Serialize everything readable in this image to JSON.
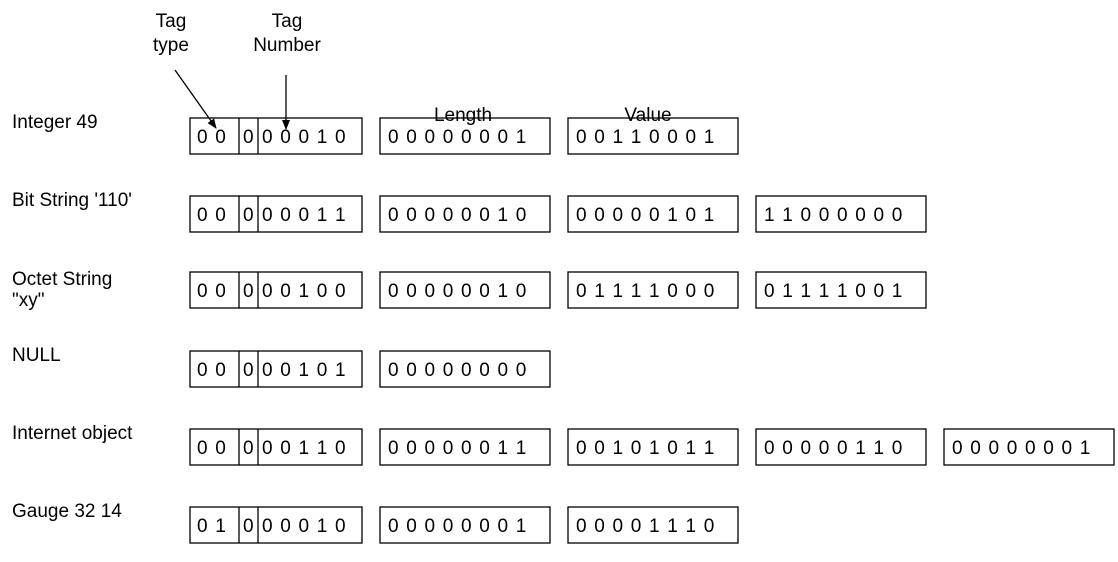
{
  "headers": {
    "tag_type": [
      "Tag",
      "type"
    ],
    "tag_number": [
      "Tag",
      "Number"
    ],
    "length": "Length",
    "value": "Value"
  },
  "rows": [
    {
      "label": [
        "Integer 49"
      ],
      "tag": {
        "class": "00",
        "pc": "0",
        "number": "00010"
      },
      "bytes": [
        "00000001",
        "00110001"
      ]
    },
    {
      "label": [
        "Bit String '110'"
      ],
      "tag": {
        "class": "00",
        "pc": "0",
        "number": "00011"
      },
      "bytes": [
        "00000010",
        "00000101",
        "11000000"
      ]
    },
    {
      "label": [
        "Octet String",
        "\"xy\""
      ],
      "tag": {
        "class": "00",
        "pc": "0",
        "number": "00100"
      },
      "bytes": [
        "00000010",
        "01111000",
        "01111001"
      ]
    },
    {
      "label": [
        "NULL"
      ],
      "tag": {
        "class": "00",
        "pc": "0",
        "number": "00101"
      },
      "bytes": [
        "00000000"
      ]
    },
    {
      "label": [
        "Internet object"
      ],
      "tag": {
        "class": "00",
        "pc": "0",
        "number": "00110"
      },
      "bytes": [
        "00000011",
        "00101011",
        "00000110",
        "00000001"
      ]
    },
    {
      "label": [
        "Gauge 32 14"
      ],
      "tag": {
        "class": "01",
        "pc": "0",
        "number": "00010"
      },
      "bytes": [
        "00000001",
        "00001110"
      ]
    }
  ]
}
